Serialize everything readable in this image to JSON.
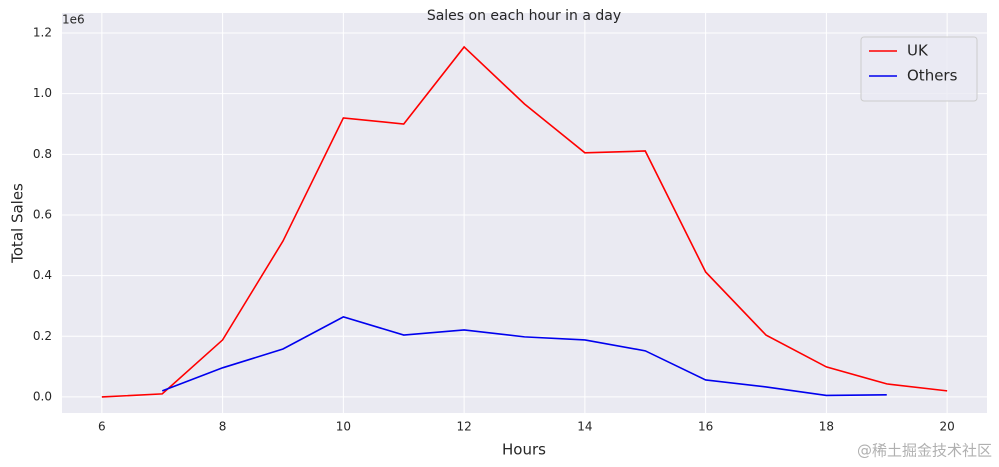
{
  "chart_data": {
    "type": "line",
    "title": "Sales on each hour in a day",
    "x_label": "Hours",
    "y_label": "Total Sales",
    "y_offset_label": "1e6",
    "watermark": "@稀土掘金技术社区",
    "x": [
      6,
      7,
      8,
      9,
      10,
      11,
      12,
      13,
      14,
      15,
      16,
      17,
      18,
      19,
      20
    ],
    "series": [
      {
        "name": "UK",
        "color": "#ff0000",
        "values": [
          0.0,
          0.01,
          0.188,
          0.514,
          0.92,
          0.9,
          1.154,
          0.966,
          0.805,
          0.811,
          0.412,
          0.204,
          0.099,
          0.043,
          0.02
        ]
      },
      {
        "name": "Others",
        "color": "#0000ee",
        "values": [
          null,
          0.02,
          0.096,
          0.158,
          0.264,
          0.204,
          0.221,
          0.198,
          0.188,
          0.152,
          0.056,
          0.033,
          0.005,
          0.007,
          null
        ]
      }
    ],
    "xlim": [
      5.34,
      20.66
    ],
    "xticks": [
      6,
      8,
      10,
      12,
      14,
      16,
      18,
      20
    ],
    "ylim": [
      -0.053,
      1.266
    ],
    "yticks": [
      {
        "value": 0,
        "label": "0.0"
      },
      {
        "value": 0.2,
        "label": "0.2"
      },
      {
        "value": 0.4,
        "label": "0.4"
      },
      {
        "value": 0.6,
        "label": "0.6"
      },
      {
        "value": 0.8,
        "label": "0.8"
      },
      {
        "value": 1,
        "label": "1.0"
      },
      {
        "value": 1.2,
        "label": "1.2"
      }
    ],
    "grid": true,
    "legend": "upper-right"
  }
}
